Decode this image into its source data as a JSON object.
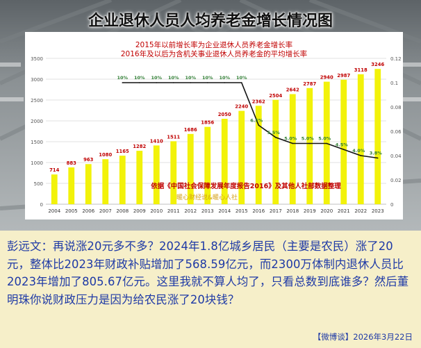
{
  "title": "企业退休人员人均养老金增长情况图",
  "chart_data": {
    "type": "bar",
    "subtitle_lines": [
      "2015年以前增长率为企业退休人员养老金增长率",
      "2016年及以后为含机关事业退休人员养老金的平均增长率"
    ],
    "categories": [
      "2004",
      "2005",
      "2006",
      "2007",
      "2008",
      "2009",
      "2010",
      "2011",
      "2012",
      "2013",
      "2014",
      "2015",
      "2016",
      "2017",
      "2018",
      "2019",
      "2020",
      "2021",
      "2022",
      "2023"
    ],
    "series": [
      {
        "type": "bar",
        "axis": "left",
        "values": [
          714,
          883,
          963,
          1080,
          1165,
          1282,
          1410,
          1511,
          1686,
          1856,
          2050,
          2240,
          2362,
          2504,
          2642,
          2787,
          2940,
          2987,
          3118,
          3246
        ],
        "labels": [
          "714",
          "883",
          "963",
          "1080",
          "1165",
          "1282",
          "1410",
          "1511",
          "1686",
          "1856",
          "2050",
          "2240",
          "2362",
          "2504",
          "2642",
          "2787",
          "2940",
          "2987",
          "3118",
          "3246"
        ]
      },
      {
        "type": "line",
        "axis": "right",
        "x": [
          "2008",
          "2009",
          "2010",
          "2011",
          "2012",
          "2013",
          "2014",
          "2015",
          "2016",
          "2017",
          "2018",
          "2019",
          "2020",
          "2021",
          "2022",
          "2023"
        ],
        "values": [
          0.1,
          0.1,
          0.1,
          0.1,
          0.1,
          0.1,
          0.1,
          0.1,
          0.065,
          0.055,
          0.05,
          0.05,
          0.05,
          0.045,
          0.04,
          0.038
        ],
        "labels": [
          "10%",
          "10%",
          "10%",
          "10%",
          "10%",
          "10%",
          "10%",
          "10%",
          "6.5%",
          "5.5%",
          "5.0%",
          "5.0%",
          "5.0%",
          "4.5%",
          "4.0%",
          "3.8%"
        ]
      }
    ],
    "ylim": [
      0,
      3500
    ],
    "yticks": [
      0,
      500,
      1000,
      1500,
      2000,
      2500,
      3000,
      3500
    ],
    "y2lim": [
      0,
      0.12
    ],
    "y2ticks": [
      "0",
      "0.02",
      "0.04",
      "0.06",
      "0.08",
      "0.1",
      "0.12"
    ],
    "annotations": [
      "依据《中国社会保障发展年度报告2016》及其他人社部数据整理",
      "暖心财经说&暖心人社"
    ],
    "grid": true,
    "colors": {
      "bar": "#f2f20a",
      "bar_label": "#c00000",
      "line": "#111111",
      "rate_label": "#2e7d32",
      "subtitle": "#c00000",
      "source_note": "#c00000",
      "credit": "#d4a017"
    }
  },
  "body_text": "彭远文：再说涨20元多不多？2024年1.8亿城乡居民（主要是农民）涨了20元，整体比2023年财政补贴增加了568.59亿元，而2300万体制内退休人员比2023年增加了805.67亿元。这里我就不算人均了，只看总数到底谁多？然后董明珠你说财政压力是因为给农民涨了20块钱？",
  "footer": "【微博谈】2026年3月22日"
}
